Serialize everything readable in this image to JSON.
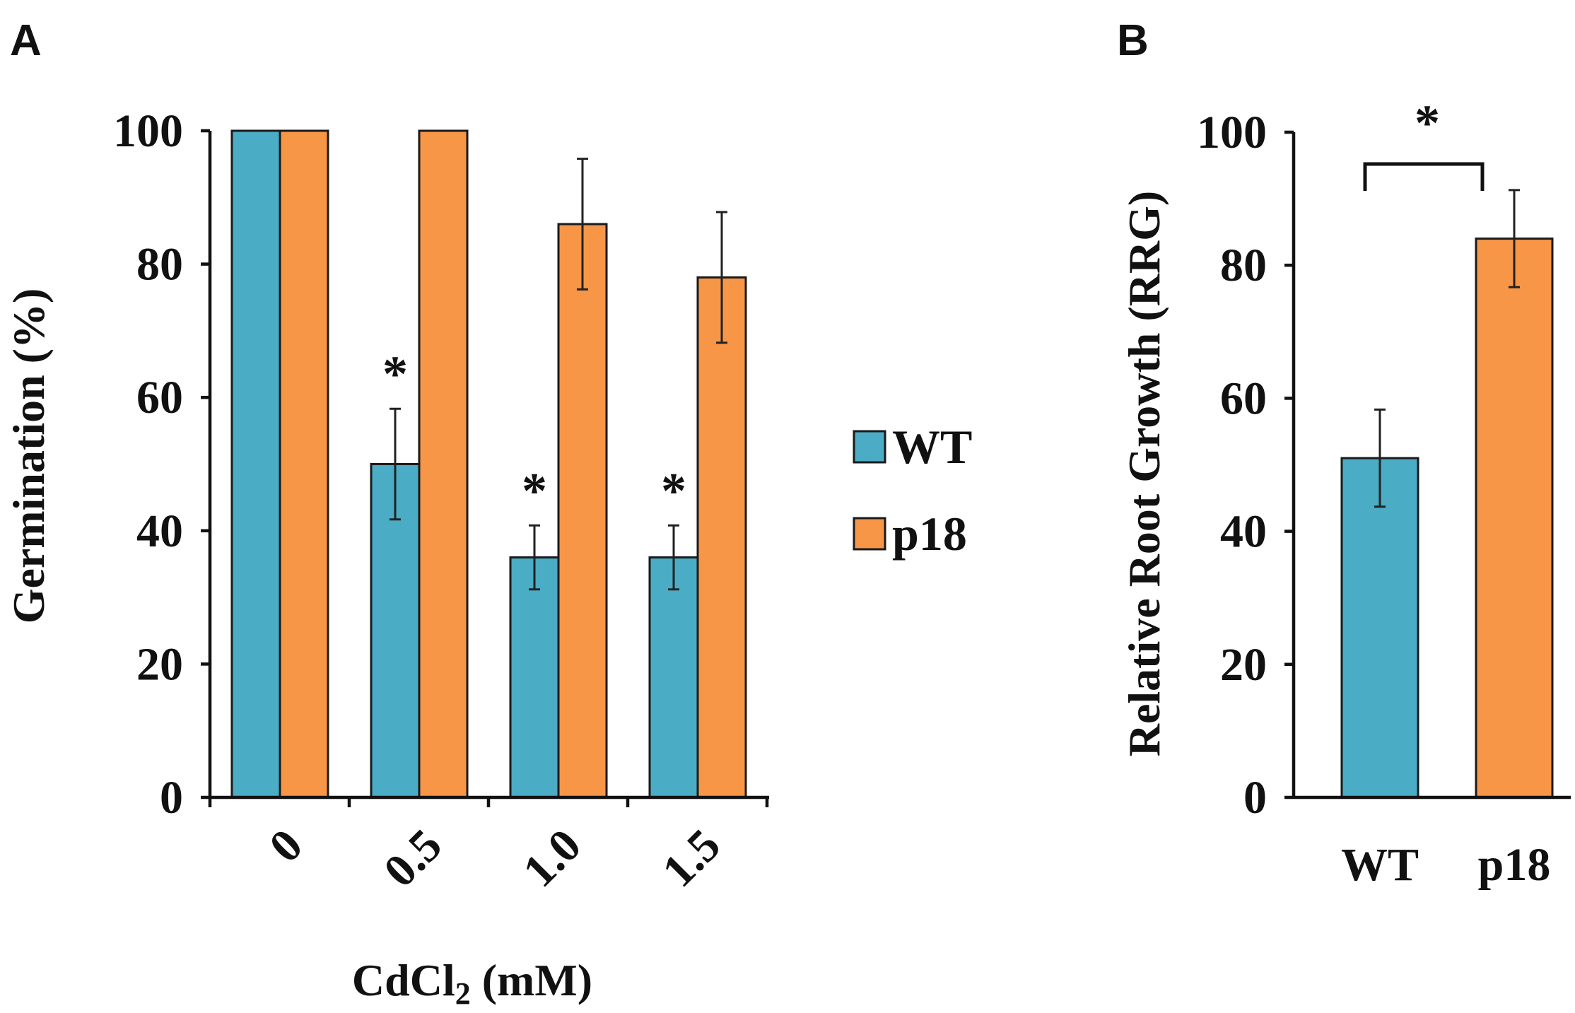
{
  "panel_labels": [
    "A",
    "B"
  ],
  "legend": [
    {
      "label": "WT",
      "color": "#4bacc6"
    },
    {
      "label": "p18",
      "color": "#f79646"
    }
  ],
  "chart_data": [
    {
      "type": "bar",
      "panel": "A",
      "title": "",
      "categories": [
        "0",
        "0.5",
        "1.0",
        "1.5"
      ],
      "xlabel_main": "CdCl",
      "xlabel_sub": "2",
      "xlabel_tail": " (mM)",
      "ylabel": "Germination (%)",
      "ylim": [
        0,
        100
      ],
      "yticks": [
        "0",
        "20",
        "40",
        "60",
        "80",
        "100"
      ],
      "series": [
        {
          "name": "WT",
          "color": "#4bacc6",
          "values": [
            100,
            50,
            36,
            36
          ],
          "errors": [
            0,
            8.3,
            4.8,
            4.8
          ],
          "significance": [
            "",
            "*",
            "*",
            "*"
          ]
        },
        {
          "name": "p18",
          "color": "#f79646",
          "values": [
            100,
            100,
            86,
            78
          ],
          "errors": [
            0,
            0,
            9.8,
            9.8
          ],
          "significance": [
            "",
            "",
            "",
            ""
          ]
        }
      ]
    },
    {
      "type": "bar",
      "panel": "B",
      "title": "",
      "categories": [
        "WT",
        "p18"
      ],
      "colors": [
        "#4bacc6",
        "#f79646"
      ],
      "values": [
        51,
        84
      ],
      "errors": [
        7.3,
        7.3
      ],
      "ylabel": "Relative Root Growth (RRG)",
      "ylim": [
        0,
        100
      ],
      "yticks": [
        "0",
        "20",
        "40",
        "60",
        "80",
        "100"
      ],
      "significance": "*"
    }
  ]
}
